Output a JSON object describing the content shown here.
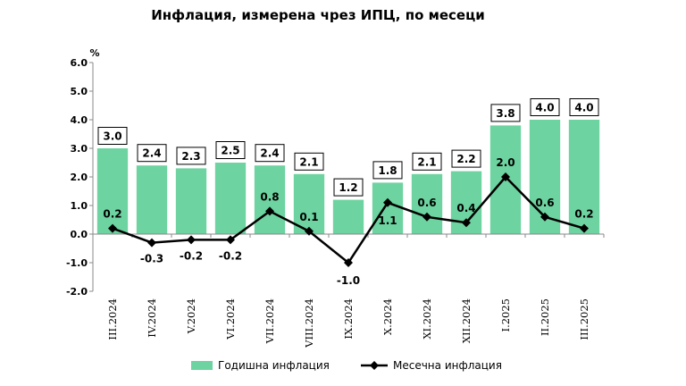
{
  "chart_data": {
    "type": "bar",
    "title": "Инфлация, измерена чрез ИПЦ, по месеци",
    "ylabel": "%",
    "ylim": [
      -2.0,
      6.0
    ],
    "yticks": [
      "6.0",
      "5.0",
      "4.0",
      "3.0",
      "2.0",
      "1.0",
      "0.0",
      "-1.0",
      "-2.0"
    ],
    "categories": [
      "III.2024",
      "IV.2024",
      "V.2024",
      "VI.2024",
      "VII.2024",
      "VIII.2024",
      "IX.2024",
      "X.2024",
      "XI.2024",
      "XII.2024",
      "I.2025",
      "II.2025",
      "III.2025"
    ],
    "series": [
      {
        "name": "Годишна инфлация",
        "type": "bar",
        "color": "#6dd3a0",
        "values": [
          3.0,
          2.4,
          2.3,
          2.5,
          2.4,
          2.1,
          1.2,
          1.8,
          2.1,
          2.2,
          3.8,
          4.0,
          4.0
        ],
        "labels": [
          "3.0",
          "2.4",
          "2.3",
          "2.5",
          "2.4",
          "2.1",
          "1.2",
          "1.8",
          "2.1",
          "2.2",
          "3.8",
          "4.0",
          "4.0"
        ]
      },
      {
        "name": "Месечна инфлация",
        "type": "line",
        "color": "#000000",
        "values": [
          0.2,
          -0.3,
          -0.2,
          -0.2,
          0.8,
          0.1,
          -1.0,
          1.1,
          0.6,
          0.4,
          2.0,
          0.6,
          0.2
        ],
        "labels": [
          "0.2",
          "-0.3",
          "-0.2",
          "-0.2",
          "0.8",
          "0.1",
          "-1.0",
          "1.1",
          "0.6",
          "0.4",
          "2.0",
          "0.6",
          "0.2"
        ]
      }
    ],
    "legend": "bottom",
    "grid": false
  }
}
